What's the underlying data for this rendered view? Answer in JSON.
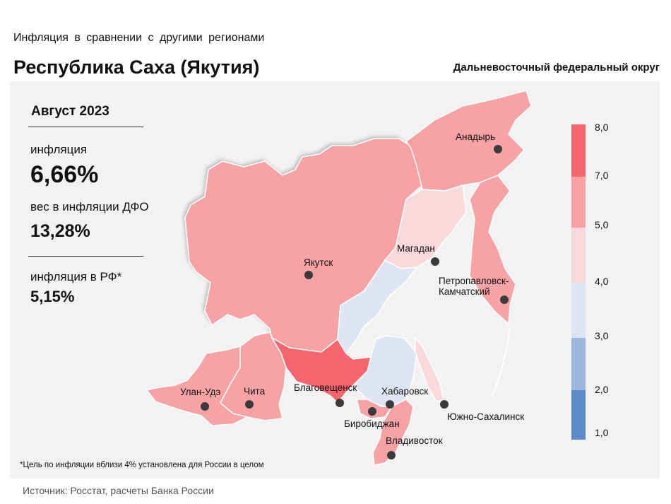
{
  "header": {
    "subtitle": "Инфляция  в сравнении  с другими  регионами",
    "title": "Республика Саха (Якутия)",
    "district": "Дальневосточный федеральный округ"
  },
  "stats": {
    "period": "Август 2023",
    "inflation_label": "инфляция",
    "inflation_value": "6,66%",
    "weight_label": "вес в инфляции ДФО",
    "weight_value": "13,28%",
    "rf_label": "инфляция  в РФ*",
    "rf_value": "5,15%"
  },
  "cities": {
    "anadyr": "Анадырь",
    "magadan": "Магадан",
    "yakutsk": "Якутск",
    "petropavlovsk_1": "Петропавловск-",
    "petropavlovsk_2": "Камчатский",
    "ulan_ude": "Улан-Удэ",
    "chita": "Чита",
    "blagoveshchensk": "Благовещенск",
    "khabarovsk": "Хабаровск",
    "birobidzhan": "Биробиджан",
    "yuzhno_sakhalinsk": "Южно-Сахалинск",
    "vladivostok": "Владивосток"
  },
  "legend": {
    "ticks": [
      "8,0",
      "7,0",
      "5,0",
      "4,0",
      "3,0",
      "2,0",
      "1,0"
    ],
    "colors": [
      "#f7666e",
      "#f7a3a6",
      "#f9d9dc",
      "#dde5f2",
      "#9bb7dd",
      "#5b8cc9"
    ]
  },
  "footnote": "*Цель по инфляции вблизи 4% установлена для России в целом",
  "source": "Источник: Росстат, расчеты Банка России"
}
